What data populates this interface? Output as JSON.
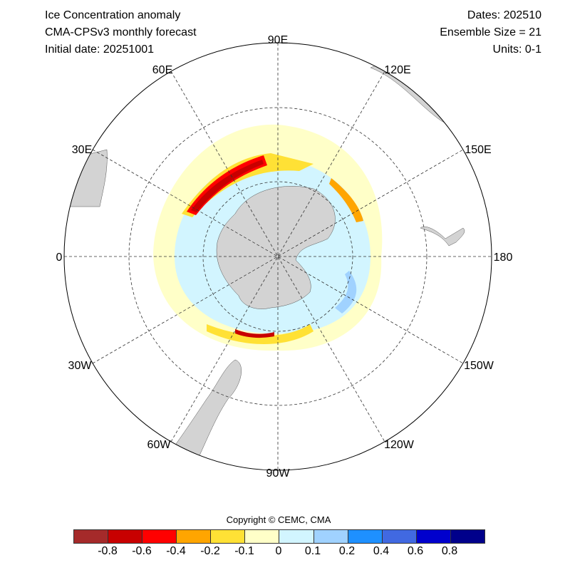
{
  "header": {
    "title1": "Ice Concentration anomaly",
    "title2": "CMA-CPSv3 monthly forecast",
    "title3": "Initial date: 20251001",
    "right1": "Dates: 202510",
    "right2": "Ensemble Size = 21",
    "right3": "Units: 0-1"
  },
  "map": {
    "projection": "south polar stereographic",
    "lon_labels": {
      "n": "90E",
      "ne": "120E",
      "e_up": "150E",
      "e": "180",
      "se": "150W",
      "se_low": "120W",
      "s": "90W",
      "sw": "60W",
      "w_low": "30W",
      "w": "0",
      "nw": "30E",
      "nw_up": "60E"
    },
    "land_color": "#D3D3D3"
  },
  "colorbar": {
    "copyright": "Copyright © CEMC, CMA",
    "colors": [
      "#A52A2A",
      "#C80000",
      "#FF0000",
      "#FFA500",
      "#FFE135",
      "#FFFFC8",
      "#D2F5FF",
      "#A0D2FF",
      "#1E90FF",
      "#4169E1",
      "#0000CD",
      "#00008B"
    ],
    "ticks": [
      "-0.8",
      "-0.6",
      "-0.4",
      "-0.2",
      "-0.1",
      "0",
      "0.1",
      "0.2",
      "0.4",
      "0.6",
      "0.8"
    ]
  }
}
